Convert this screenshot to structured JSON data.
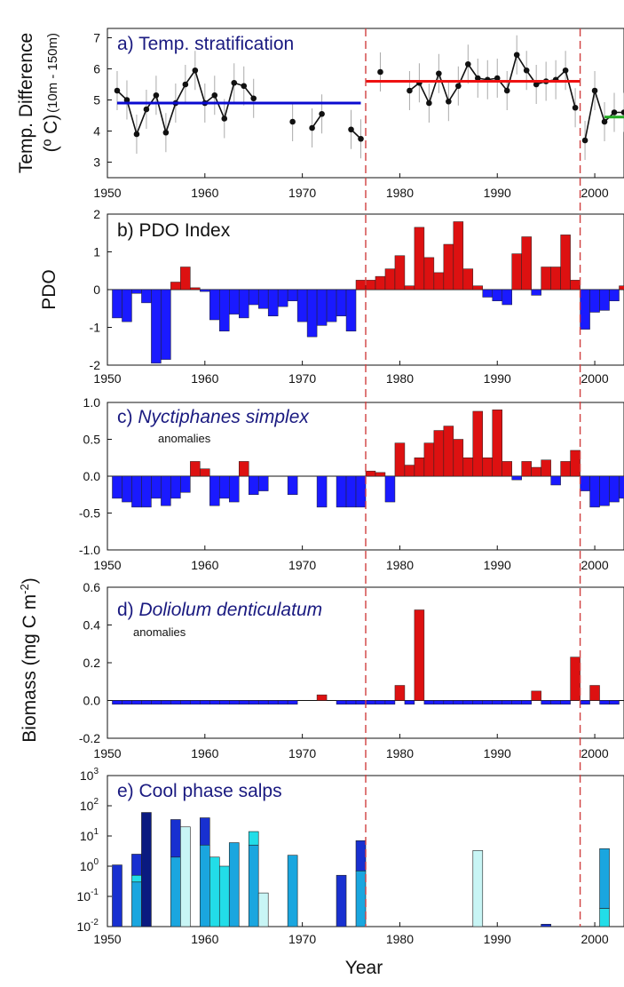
{
  "x_tick_labels": [
    "1950",
    "1960",
    "1970",
    "1980",
    "1990",
    "2000"
  ],
  "regime_shift_years": [
    1976.5,
    1998.5
  ],
  "colors": {
    "red": "#dd1111",
    "blue": "#1a1aff",
    "red_line": "#ee1111",
    "blue_line": "#0a0ad0",
    "green_line": "#22aa22",
    "dashed": "#d04040",
    "salp_dark": "#0a1a80",
    "salp_blue": "#1830d0",
    "salp_mid": "#1aa6df",
    "salp_cyan": "#22dde8",
    "salp_pale": "#c8f5f5"
  },
  "chart_data": [
    {
      "type": "line",
      "title": "a) Temp. stratification",
      "ylabel": "Temp. Difference",
      "ylabel2": "(º C)",
      "ylabel_sub": "(10m - 150m)",
      "xlim": [
        1950,
        2003
      ],
      "ylim": [
        2.5,
        7.3
      ],
      "yticks": [
        "3",
        "4",
        "5",
        "6",
        "7"
      ],
      "segments": [
        {
          "x": [
            1951,
            1952,
            1953,
            1954,
            1955,
            1956,
            1957,
            1958,
            1959,
            1960,
            1961,
            1962,
            1963,
            1964,
            1965
          ],
          "y": [
            5.3,
            5.0,
            3.9,
            4.7,
            5.15,
            3.95,
            4.9,
            5.5,
            5.95,
            4.9,
            5.15,
            4.4,
            5.55,
            5.45,
            5.05
          ]
        },
        {
          "x": [
            1969
          ],
          "y": [
            4.3
          ]
        },
        {
          "x": [
            1971,
            1972
          ],
          "y": [
            4.1,
            4.55
          ]
        },
        {
          "x": [
            1975,
            1976
          ],
          "y": [
            4.05,
            3.75
          ]
        },
        {
          "x": [
            1978
          ],
          "y": [
            5.9
          ]
        },
        {
          "x": [
            1981,
            1982,
            1983,
            1984,
            1985,
            1986,
            1987,
            1988,
            1989,
            1990,
            1991,
            1992,
            1993,
            1994,
            1995,
            1996,
            1997,
            1998
          ],
          "y": [
            5.3,
            5.55,
            4.9,
            5.85,
            4.95,
            5.45,
            6.15,
            5.7,
            5.65,
            5.7,
            5.3,
            6.45,
            5.95,
            5.5,
            5.6,
            5.65,
            5.95,
            4.75
          ]
        },
        {
          "x": [
            1999,
            2000,
            2001,
            2002,
            2003
          ],
          "y": [
            3.7,
            5.3,
            4.3,
            4.6,
            4.6
          ]
        }
      ],
      "means": [
        {
          "x": [
            1951,
            1976
          ],
          "y": 4.9,
          "color": "blue_line"
        },
        {
          "x": [
            1976.5,
            1998.5
          ],
          "y": 5.6,
          "color": "red_line"
        },
        {
          "x": [
            2001,
            2003
          ],
          "y": 4.45,
          "color": "green_line"
        }
      ]
    },
    {
      "type": "bar",
      "title": "b) PDO Index",
      "ylabel": "PDO",
      "xlim": [
        1950,
        2003
      ],
      "ylim": [
        -2,
        2
      ],
      "yticks": [
        "-2",
        "-1",
        "0",
        "1",
        "2"
      ],
      "years": [
        1951,
        1952,
        1953,
        1954,
        1955,
        1956,
        1957,
        1958,
        1959,
        1960,
        1961,
        1962,
        1963,
        1964,
        1965,
        1966,
        1967,
        1968,
        1969,
        1970,
        1971,
        1972,
        1973,
        1974,
        1975,
        1976,
        1977,
        1978,
        1979,
        1980,
        1981,
        1982,
        1983,
        1984,
        1985,
        1986,
        1987,
        1988,
        1989,
        1990,
        1991,
        1992,
        1993,
        1994,
        1995,
        1996,
        1997,
        1998,
        1999,
        2000,
        2001,
        2002,
        2003
      ],
      "values": [
        -0.75,
        -0.85,
        -0.1,
        -0.35,
        -1.95,
        -1.85,
        0.2,
        0.6,
        0.05,
        -0.05,
        -0.8,
        -1.1,
        -0.65,
        -0.75,
        -0.4,
        -0.5,
        -0.7,
        -0.45,
        -0.3,
        -0.85,
        -1.25,
        -0.95,
        -0.85,
        -0.7,
        -1.1,
        0.25,
        0.25,
        0.35,
        0.55,
        0.9,
        0.1,
        1.65,
        0.85,
        0.45,
        1.2,
        1.8,
        0.55,
        0.1,
        -0.2,
        -0.3,
        -0.4,
        0.95,
        1.4,
        -0.15,
        0.6,
        0.6,
        1.45,
        0.25,
        -1.05,
        -0.6,
        -0.55,
        -0.3,
        0.1
      ]
    },
    {
      "type": "bar",
      "title": "c) Nyctiphanes simplex",
      "title_prefix": "c) ",
      "title_species": "Nyctiphanes simplex",
      "subtitle": "anomalies",
      "xlim": [
        1950,
        2003
      ],
      "ylim": [
        -1.0,
        1.0
      ],
      "yticks": [
        "-1.0",
        "-0.5",
        "0.0",
        "0.5",
        "1.0"
      ],
      "years": [
        1951,
        1952,
        1953,
        1954,
        1955,
        1956,
        1957,
        1958,
        1959,
        1960,
        1961,
        1962,
        1963,
        1964,
        1965,
        1966,
        1967,
        1968,
        1969,
        1970,
        1971,
        1972,
        1973,
        1974,
        1975,
        1976,
        1977,
        1978,
        1979,
        1980,
        1981,
        1982,
        1983,
        1984,
        1985,
        1986,
        1987,
        1988,
        1989,
        1990,
        1991,
        1992,
        1993,
        1994,
        1995,
        1996,
        1997,
        1998,
        1999,
        2000,
        2001,
        2002,
        2003
      ],
      "values": [
        -0.3,
        -0.35,
        -0.42,
        -0.42,
        -0.3,
        -0.4,
        -0.3,
        -0.22,
        0.2,
        0.1,
        -0.4,
        -0.3,
        -0.35,
        0.2,
        -0.25,
        -0.2,
        null,
        null,
        -0.25,
        null,
        null,
        -0.42,
        null,
        -0.42,
        -0.42,
        -0.42,
        0.07,
        0.05,
        -0.35,
        0.45,
        0.15,
        0.25,
        0.45,
        0.62,
        0.68,
        0.5,
        0.25,
        0.88,
        0.25,
        0.9,
        0.2,
        -0.05,
        0.2,
        0.12,
        0.22,
        -0.12,
        0.2,
        0.35,
        -0.2,
        -0.42,
        -0.4,
        -0.35,
        -0.3
      ]
    },
    {
      "type": "bar",
      "title": "d) Doliolum denticulatum",
      "title_prefix": "d) ",
      "title_species": "Doliolum denticulatum",
      "subtitle": "anomalies",
      "ylabel": "Biomass (mg C m",
      "ylabel_sup": "-2",
      "ylabel_close": ")",
      "xlim": [
        1950,
        2003
      ],
      "ylim": [
        -0.2,
        0.6
      ],
      "yticks": [
        "-0.2",
        "0.0",
        "0.2",
        "0.4",
        "0.6"
      ],
      "years": [
        1951,
        1952,
        1953,
        1954,
        1955,
        1956,
        1957,
        1958,
        1959,
        1960,
        1961,
        1962,
        1963,
        1964,
        1965,
        1966,
        1967,
        1968,
        1969,
        1970,
        1971,
        1972,
        1973,
        1974,
        1975,
        1976,
        1977,
        1978,
        1979,
        1980,
        1981,
        1982,
        1983,
        1984,
        1985,
        1986,
        1987,
        1988,
        1989,
        1990,
        1991,
        1992,
        1993,
        1994,
        1995,
        1996,
        1997,
        1998,
        1999,
        2000,
        2001,
        2002
      ],
      "values": [
        -0.02,
        -0.02,
        -0.02,
        -0.02,
        -0.02,
        -0.02,
        -0.02,
        -0.02,
        -0.02,
        -0.02,
        -0.02,
        -0.02,
        -0.02,
        -0.02,
        -0.02,
        -0.02,
        -0.02,
        -0.02,
        -0.02,
        null,
        null,
        0.03,
        null,
        -0.02,
        -0.02,
        -0.02,
        -0.02,
        -0.02,
        -0.02,
        0.08,
        -0.02,
        0.48,
        -0.02,
        -0.02,
        -0.02,
        -0.02,
        -0.02,
        -0.02,
        -0.02,
        -0.02,
        -0.02,
        -0.02,
        -0.02,
        0.05,
        -0.02,
        -0.02,
        -0.02,
        0.23,
        -0.02,
        0.08,
        -0.02,
        -0.02
      ]
    },
    {
      "type": "bar",
      "title": "e) Cool phase salps",
      "xlabel": "Year",
      "scale": "log",
      "xlim": [
        1950,
        2003
      ],
      "ylim_exponents": [
        -2,
        3
      ],
      "ytick_exponents": [
        "-2",
        "-1",
        "0",
        "1",
        "2",
        "3"
      ],
      "ytick_base": "10",
      "bars": [
        {
          "x": 1951,
          "stack": [
            {
              "v": 1.1,
              "c": "salp_blue"
            }
          ]
        },
        {
          "x": 1953,
          "stack": [
            {
              "v": 0.3,
              "c": "salp_mid"
            },
            {
              "v": 0.5,
              "c": "salp_cyan"
            },
            {
              "v": 2.5,
              "c": "salp_blue"
            }
          ]
        },
        {
          "x": 1954,
          "stack": [
            {
              "v": 60,
              "c": "salp_dark"
            }
          ]
        },
        {
          "x": 1957,
          "stack": [
            {
              "v": 2,
              "c": "salp_mid"
            },
            {
              "v": 35,
              "c": "salp_blue"
            }
          ]
        },
        {
          "x": 1958,
          "stack": [
            {
              "v": 20,
              "c": "salp_pale"
            }
          ]
        },
        {
          "x": 1960,
          "stack": [
            {
              "v": 5,
              "c": "salp_mid"
            },
            {
              "v": 40,
              "c": "salp_blue"
            }
          ]
        },
        {
          "x": 1961,
          "stack": [
            {
              "v": 2,
              "c": "salp_cyan"
            }
          ]
        },
        {
          "x": 1962,
          "stack": [
            {
              "v": 1,
              "c": "salp_cyan"
            }
          ]
        },
        {
          "x": 1963,
          "stack": [
            {
              "v": 6,
              "c": "salp_mid"
            }
          ]
        },
        {
          "x": 1965,
          "stack": [
            {
              "v": 5,
              "c": "salp_mid"
            },
            {
              "v": 14,
              "c": "salp_cyan"
            }
          ]
        },
        {
          "x": 1966,
          "stack": [
            {
              "v": 0.13,
              "c": "salp_pale"
            }
          ]
        },
        {
          "x": 1969,
          "stack": [
            {
              "v": 2.3,
              "c": "salp_mid"
            }
          ]
        },
        {
          "x": 1974,
          "stack": [
            {
              "v": 0.5,
              "c": "salp_blue"
            }
          ]
        },
        {
          "x": 1976,
          "stack": [
            {
              "v": 0.7,
              "c": "salp_mid"
            },
            {
              "v": 7,
              "c": "salp_blue"
            }
          ]
        },
        {
          "x": 1988,
          "stack": [
            {
              "v": 3.3,
              "c": "salp_pale"
            }
          ]
        },
        {
          "x": 1995,
          "stack": [
            {
              "v": 0.012,
              "c": "salp_blue"
            }
          ]
        },
        {
          "x": 2001,
          "stack": [
            {
              "v": 0.04,
              "c": "salp_cyan"
            },
            {
              "v": 3.8,
              "c": "salp_mid"
            }
          ]
        }
      ]
    }
  ]
}
